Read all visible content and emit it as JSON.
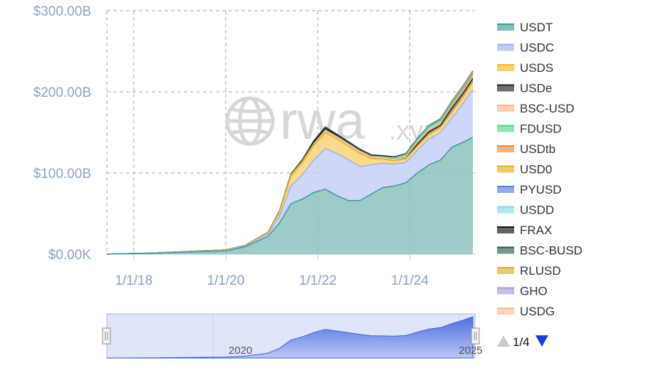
{
  "watermark": {
    "brand": "rwa",
    "suffix": ".xyz",
    "icon": "globe-icon"
  },
  "chart_data": {
    "type": "area",
    "stacked": true,
    "x_axis": {
      "range": [
        "2017-06-01",
        "2025-06-01"
      ],
      "ticks": [
        "1/1/18",
        "1/1/20",
        "1/1/22",
        "1/1/24"
      ],
      "tick_dates": [
        "2018-01-01",
        "2020-01-01",
        "2022-01-01",
        "2024-01-01"
      ]
    },
    "y_axis": {
      "ticks": [
        "$0.00K",
        "$100.00B",
        "$200.00B",
        "$300.00B"
      ],
      "tick_values": [
        0,
        100,
        200,
        300
      ],
      "unit": "billions USD",
      "ylim": [
        0,
        300
      ]
    },
    "grid": true,
    "legend_position": "right",
    "dates": [
      "2017-06-01",
      "2018-06-01",
      "2019-06-01",
      "2020-01-01",
      "2020-06-01",
      "2020-12-01",
      "2021-03-01",
      "2021-06-01",
      "2021-09-01",
      "2021-12-01",
      "2022-03-01",
      "2022-06-01",
      "2022-09-01",
      "2022-12-01",
      "2023-03-01",
      "2023-06-01",
      "2023-09-01",
      "2023-12-01",
      "2024-03-01",
      "2024-06-01",
      "2024-09-01",
      "2024-12-01",
      "2025-03-01",
      "2025-05-15"
    ],
    "series": [
      {
        "name": "USDT",
        "color": "#3d9a93",
        "values": [
          0.1,
          1,
          3,
          4,
          9,
          22,
          38,
          62,
          68,
          76,
          80,
          72,
          66,
          66,
          74,
          82,
          84,
          88,
          100,
          110,
          116,
          132,
          138,
          144
        ]
      },
      {
        "name": "USDC",
        "color": "#9fb0f3",
        "values": [
          0,
          0.2,
          0.6,
          0.8,
          1,
          3,
          8,
          22,
          30,
          40,
          50,
          52,
          50,
          42,
          36,
          30,
          27,
          25,
          28,
          32,
          34,
          36,
          48,
          59
        ]
      },
      {
        "name": "USDS",
        "color": "#f2b81c",
        "values": [
          0,
          0.1,
          0.3,
          0.5,
          0.7,
          1.2,
          5,
          12,
          15,
          18,
          20,
          18,
          17,
          16,
          8,
          5,
          4,
          4.5,
          5,
          5.5,
          6,
          7,
          8,
          9
        ]
      },
      {
        "name": "USDe",
        "color": "#222222",
        "values": [
          0,
          0,
          0,
          0,
          0,
          0,
          0,
          0,
          0,
          0,
          0,
          0,
          0,
          0,
          0,
          0,
          0,
          0.5,
          2.5,
          3.5,
          3,
          5.5,
          5,
          4.5
        ]
      },
      {
        "name": "BSC-USD",
        "color": "#f7b489",
        "values": [
          0,
          0,
          0,
          0,
          0.1,
          0.3,
          0.8,
          1.2,
          1.5,
          2,
          2.5,
          2.5,
          2.5,
          2.5,
          2,
          2,
          2,
          2,
          2,
          2,
          2.2,
          2.5,
          2.8,
          3
        ]
      },
      {
        "name": "FDUSD",
        "color": "#55d68f",
        "values": [
          0,
          0,
          0,
          0,
          0,
          0,
          0,
          0,
          0,
          0,
          0,
          0,
          0,
          0,
          0,
          0.3,
          1,
          2,
          3,
          3.5,
          3,
          2.5,
          2,
          1.5
        ]
      },
      {
        "name": "USDtb",
        "color": "#f08a3a",
        "values": [
          0,
          0,
          0,
          0,
          0,
          0,
          0,
          0,
          0,
          0,
          0,
          0,
          0,
          0,
          0,
          0,
          0,
          0,
          0,
          0,
          0,
          0.5,
          1.2,
          1.5
        ]
      },
      {
        "name": "USD0",
        "color": "#e2b11f",
        "values": [
          0,
          0,
          0,
          0,
          0,
          0,
          0,
          0,
          0,
          0,
          0,
          0,
          0,
          0,
          0,
          0,
          0,
          0,
          0,
          0.2,
          0.5,
          0.8,
          0.9,
          0.9
        ]
      },
      {
        "name": "PYUSD",
        "color": "#5b7ce6",
        "values": [
          0,
          0,
          0,
          0,
          0,
          0,
          0,
          0,
          0,
          0,
          0,
          0,
          0,
          0,
          0,
          0,
          0.1,
          0.2,
          0.3,
          0.5,
          0.8,
          0.6,
          0.7,
          0.9
        ]
      },
      {
        "name": "USDD",
        "color": "#7fdde8",
        "values": [
          0,
          0,
          0,
          0,
          0,
          0,
          0,
          0,
          0,
          0,
          0,
          0.5,
          0.7,
          0.8,
          0.7,
          0.7,
          0.7,
          0.7,
          0.7,
          0.7,
          0.7,
          0.7,
          0.7,
          0.7
        ]
      },
      {
        "name": "FRAX",
        "color": "#111111",
        "values": [
          0,
          0,
          0,
          0,
          0,
          0.1,
          0.3,
          0.5,
          1,
          2.5,
          2.7,
          1.5,
          1.2,
          1,
          1,
          0.9,
          0.8,
          0.7,
          0.6,
          0.5,
          0.4,
          0.4,
          0.3,
          0.3
        ]
      },
      {
        "name": "BSC-BUSD",
        "color": "#2f5e4d",
        "values": [
          0,
          0,
          0,
          0,
          0.1,
          0.3,
          0.8,
          1,
          1.2,
          1.5,
          1.5,
          1.3,
          1.2,
          1,
          0.6,
          0.4,
          0.3,
          0.2,
          0.1,
          0.1,
          0.1,
          0.1,
          0.1,
          0.1
        ]
      },
      {
        "name": "RLUSD",
        "color": "#e0b02a",
        "values": [
          0,
          0,
          0,
          0,
          0,
          0,
          0,
          0,
          0,
          0,
          0,
          0,
          0,
          0,
          0,
          0,
          0,
          0,
          0,
          0,
          0,
          0.05,
          0.1,
          0.2
        ]
      },
      {
        "name": "GHO",
        "color": "#a99bd8",
        "values": [
          0,
          0,
          0,
          0,
          0,
          0,
          0,
          0,
          0,
          0,
          0,
          0,
          0,
          0,
          0,
          0,
          0,
          0,
          0.05,
          0.1,
          0.15,
          0.2,
          0.2,
          0.2
        ]
      },
      {
        "name": "USDG",
        "color": "#f8c08f",
        "values": [
          0,
          0,
          0,
          0,
          0,
          0,
          0,
          0,
          0,
          0,
          0,
          0,
          0,
          0,
          0,
          0,
          0,
          0,
          0,
          0,
          0,
          0,
          0.05,
          0.1
        ]
      }
    ]
  },
  "navigator": {
    "labels": [
      "2020",
      "2025"
    ],
    "label_dates": [
      "2020-01-01",
      "2025-01-01"
    ]
  },
  "legend_pager": {
    "text": "1/4",
    "up_icon": "triangle-up-icon",
    "down_icon": "triangle-down-icon"
  }
}
